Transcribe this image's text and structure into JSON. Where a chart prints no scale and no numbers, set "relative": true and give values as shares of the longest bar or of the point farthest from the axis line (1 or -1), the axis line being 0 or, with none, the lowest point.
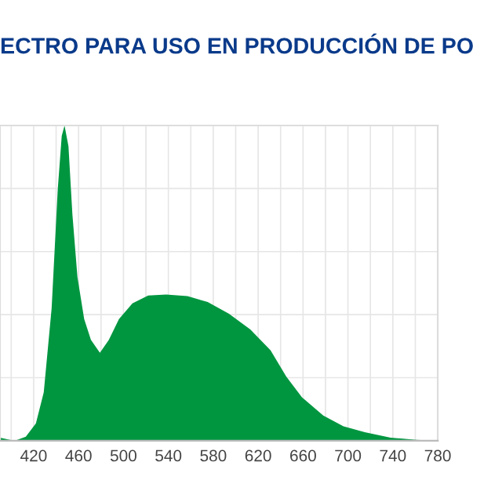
{
  "chart_data": {
    "type": "area",
    "title": "ECTRO PARA USO EN PRODUCCIÓN DE PO",
    "relative": true,
    "grid": true,
    "xlim": [
      390,
      780
    ],
    "xticks": [
      {
        "value": 400,
        "label": null
      },
      420,
      {
        "value": 440,
        "label": null
      },
      460,
      {
        "value": 480,
        "label": null
      },
      500,
      {
        "value": 520,
        "label": null
      },
      540,
      {
        "value": 560,
        "label": null
      },
      580,
      {
        "value": 600,
        "label": null
      },
      620,
      {
        "value": 640,
        "label": null
      },
      660,
      {
        "value": 680,
        "label": null
      },
      700,
      {
        "value": 720,
        "label": null
      },
      740,
      {
        "value": 760,
        "label": null
      },
      780
    ],
    "series": [
      {
        "color": "#009640",
        "x": [
          390,
          403,
          413,
          422,
          429,
          436,
          441.5,
          445,
          447.5,
          451,
          454.5,
          459,
          465,
          471,
          479,
          487,
          496,
          508,
          522,
          538,
          557,
          575,
          594,
          613,
          631,
          645,
          659,
          678,
          696,
          715,
          738,
          761,
          780
        ],
        "values": [
          0.01,
          0,
          0.013,
          0.055,
          0.154,
          0.42,
          0.8,
          0.967,
          1,
          0.934,
          0.718,
          0.519,
          0.386,
          0.32,
          0.279,
          0.32,
          0.386,
          0.436,
          0.461,
          0.464,
          0.459,
          0.44,
          0.403,
          0.353,
          0.287,
          0.204,
          0.138,
          0.08,
          0.046,
          0.027,
          0.01,
          0.003,
          0
        ]
      }
    ]
  }
}
